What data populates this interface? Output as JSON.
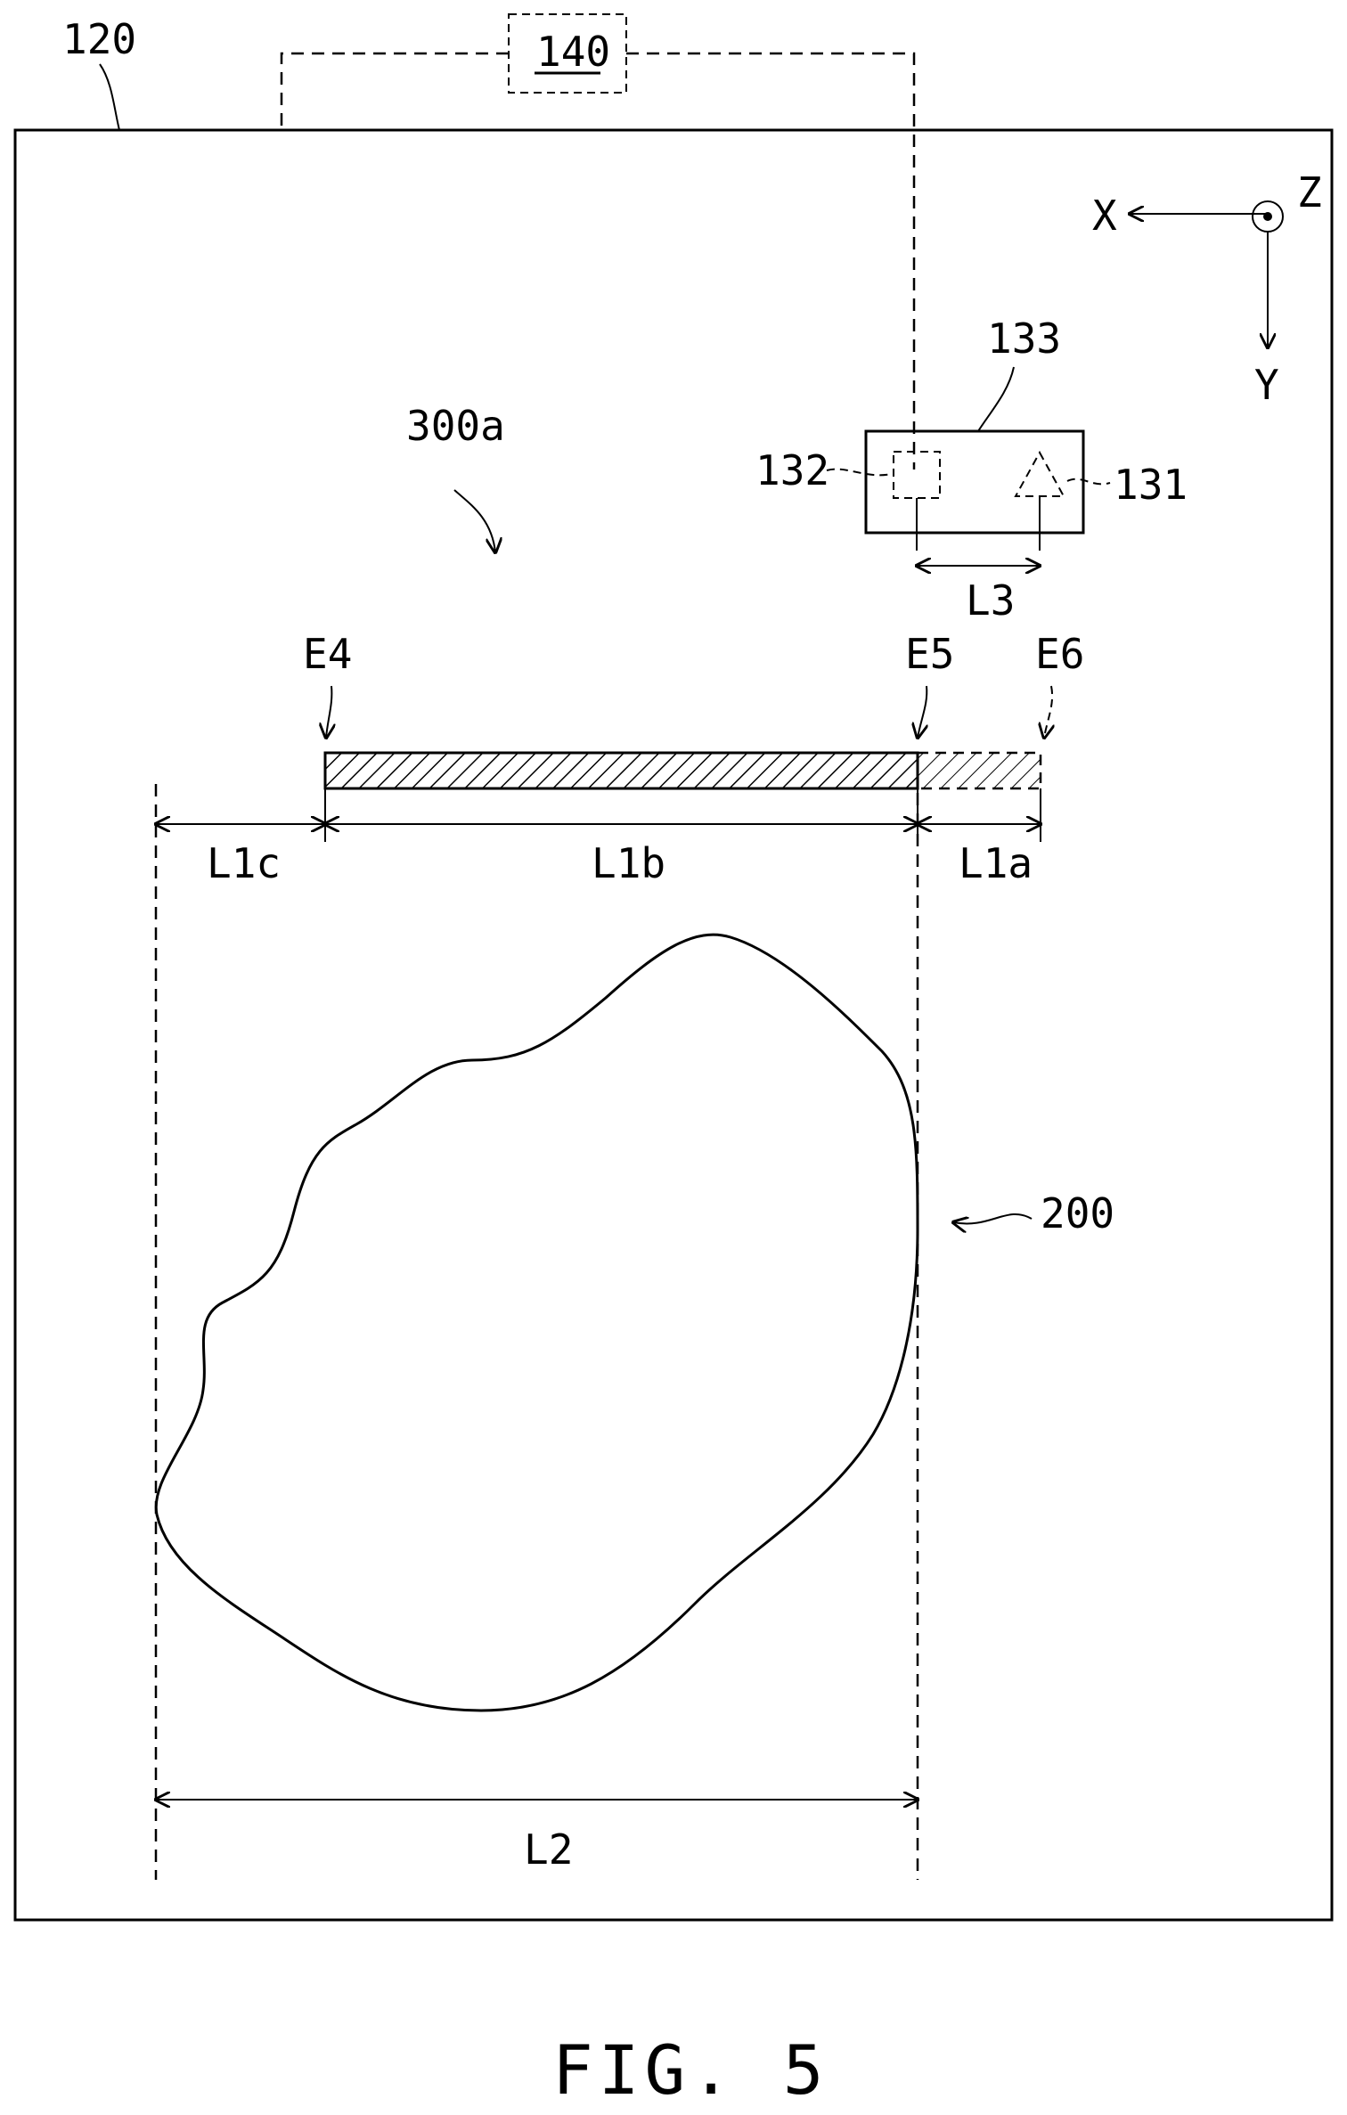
{
  "labels": {
    "frame": "120",
    "controller": "140",
    "sensor_housing": "133",
    "receiver": "132",
    "emitter": "131",
    "pattern": "300a",
    "edge_start": "E4",
    "edge_mid": "E5",
    "edge_end": "E6",
    "seg_c": "L1c",
    "seg_b": "L1b",
    "seg_a": "L1a",
    "spacing": "L3",
    "object": "200",
    "object_width": "L2",
    "axis_x": "X",
    "axis_y": "Y",
    "axis_z": "Z"
  },
  "caption": "FIG. 5"
}
